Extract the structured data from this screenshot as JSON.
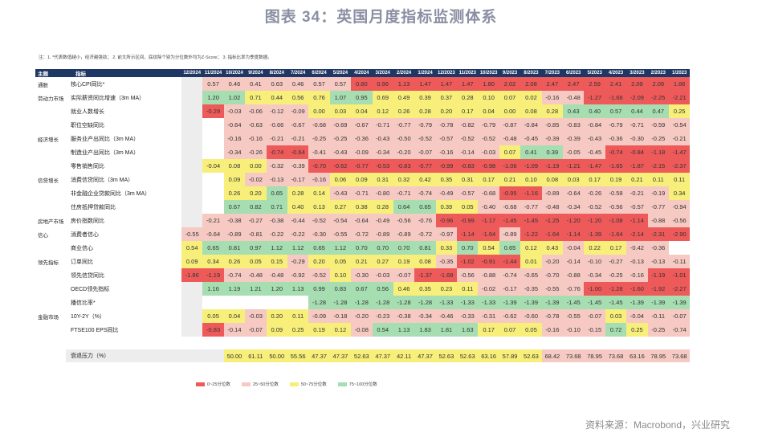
{
  "title": "图表 34：英国月度指标监测体系",
  "note": "注：1. *代表数值越小，经济越强劲； 2. 前文所示区间，底纹除个别为分位数外均为Z-Score； 3. 指标比率为季度数据。",
  "header": {
    "cat": "主题",
    "name": "指标"
  },
  "months": [
    "12/2024",
    "11/2024",
    "10/2024",
    "9/2024",
    "8/2024",
    "7/2024",
    "6/2024",
    "5/2024",
    "4/2024",
    "3/2024",
    "2/2024",
    "1/2024",
    "12/2023",
    "11/2023",
    "10/2023",
    "9/2023",
    "8/2023",
    "7/2023",
    "6/2023",
    "5/2023",
    "4/2023",
    "3/2023",
    "2/2023",
    "1/2023"
  ],
  "colors": {
    "red": "#ee5a5a",
    "pink": "#f6c9c3",
    "yellow": "#f7ef7a",
    "green": "#a6ddb1",
    "header": "#1f3764",
    "blank": "#ededed"
  },
  "rows": [
    {
      "cat": "通胀",
      "name": "核心CPI同比*",
      "values": [
        null,
        "0.57",
        "0.46",
        "0.41",
        "0.63",
        "0.46",
        "0.57",
        "0.57",
        "0.80",
        "0.96",
        "1.13",
        "1.47",
        "1.47",
        "1.47",
        "1.80",
        "2.02",
        "2.08",
        "2.47",
        "2.47",
        "2.59",
        "2.41",
        "2.09",
        "2.09",
        "1.86"
      ],
      "colors": [
        "w",
        "p",
        "p",
        "p",
        "p",
        "p",
        "p",
        "p",
        "r",
        "r",
        "r",
        "r",
        "r",
        "r",
        "r",
        "r",
        "r",
        "r",
        "r",
        "r",
        "r",
        "r",
        "r",
        "r"
      ]
    },
    {
      "cat": "劳动力市场",
      "name": "实际薪资同比增速（3m MA）",
      "values": [
        null,
        "1.20",
        "1.02",
        "0.71",
        "0.44",
        "0.56",
        "0.76",
        "1.07",
        "0.95",
        "0.69",
        "0.49",
        "0.39",
        "0.37",
        "0.28",
        "0.10",
        "0.07",
        "0.02",
        "-0.16",
        "-0.48",
        "-1.27",
        "-1.68",
        "-2.09",
        "-2.25",
        "-2.21"
      ],
      "colors": [
        "w",
        "g",
        "g",
        "y",
        "y",
        "y",
        "y",
        "g",
        "g",
        "y",
        "y",
        "y",
        "y",
        "y",
        "y",
        "y",
        "y",
        "p",
        "p",
        "r",
        "r",
        "r",
        "r",
        "r"
      ]
    },
    {
      "cat": "",
      "name": "就业人数增长",
      "values": [
        null,
        "-0.29",
        "-0.03",
        "-0.06",
        "-0.12",
        "-0.09",
        "0.00",
        "0.03",
        "0.04",
        "0.12",
        "0.26",
        "0.28",
        "0.20",
        "0.17",
        "0.04",
        "0.00",
        "0.08",
        "0.28",
        "0.43",
        "0.40",
        "0.57",
        "0.44",
        "0.47",
        "0.25"
      ],
      "colors": [
        "w",
        "r",
        "p",
        "p",
        "p",
        "p",
        "y",
        "y",
        "y",
        "y",
        "y",
        "y",
        "y",
        "y",
        "y",
        "y",
        "y",
        "y",
        "g",
        "g",
        "g",
        "g",
        "g",
        "y"
      ]
    },
    {
      "cat": "",
      "name": "职位空缺同比",
      "values": [
        null,
        null,
        "-0.64",
        "-0.63",
        "-0.66",
        "-0.67",
        "-0.68",
        "-0.69",
        "-0.67",
        "-0.71",
        "-0.77",
        "-0.79",
        "-0.78",
        "-0.82",
        "-0.79",
        "-0.87",
        "-0.84",
        "-0.85",
        "-0.83",
        "-0.84",
        "-0.79",
        "-0.71",
        "-0.59",
        "-0.54"
      ],
      "colors": [
        "w",
        "w",
        "p",
        "p",
        "p",
        "p",
        "p",
        "p",
        "p",
        "p",
        "p",
        "p",
        "p",
        "p",
        "p",
        "p",
        "p",
        "p",
        "p",
        "p",
        "p",
        "p",
        "p",
        "p"
      ]
    },
    {
      "cat": "经济增长",
      "name": "服务业产出同比（3m MA）",
      "values": [
        null,
        null,
        "-0.16",
        "-0.16",
        "-0.21",
        "-0.21",
        "-0.25",
        "-0.25",
        "-0.36",
        "-0.43",
        "-0.50",
        "-0.52",
        "-0.57",
        "-0.52",
        "-0.52",
        "-0.48",
        "-0.45",
        "-0.39",
        "-0.39",
        "-0.43",
        "-0.36",
        "-0.30",
        "-0.25",
        "-0.21"
      ],
      "colors": [
        "w",
        "w",
        "p",
        "p",
        "p",
        "p",
        "p",
        "p",
        "p",
        "p",
        "p",
        "p",
        "p",
        "p",
        "p",
        "p",
        "p",
        "p",
        "p",
        "p",
        "p",
        "p",
        "p",
        "p"
      ]
    },
    {
      "cat": "",
      "name": "制造业产出同比（3m MA）",
      "values": [
        null,
        null,
        "-0.34",
        "-0.26",
        "-0.74",
        "-0.64",
        "-0.41",
        "-0.43",
        "-0.09",
        "-0.34",
        "-0.20",
        "-0.07",
        "-0.16",
        "-0.14",
        "-0.03",
        "0.07",
        "0.41",
        "0.39",
        "-0.05",
        "-0.45",
        "-0.74",
        "-0.84",
        "-1.18",
        "-1.47"
      ],
      "colors": [
        "w",
        "w",
        "p",
        "p",
        "r",
        "r",
        "p",
        "p",
        "p",
        "p",
        "p",
        "p",
        "p",
        "p",
        "p",
        "y",
        "g",
        "g",
        "p",
        "p",
        "r",
        "r",
        "r",
        "r"
      ]
    },
    {
      "cat": "",
      "name": "零售销售同比",
      "values": [
        null,
        "-0.04",
        "0.08",
        "0.00",
        "-0.32",
        "-0.39",
        "-0.70",
        "-0.62",
        "-0.77",
        "-0.53",
        "-0.83",
        "-0.77",
        "-0.99",
        "-0.83",
        "-0.98",
        "-1.06",
        "-1.09",
        "-1.19",
        "-1.21",
        "-1.47",
        "-1.65",
        "-1.87",
        "-2.15",
        "-2.37"
      ],
      "colors": [
        "w",
        "y",
        "y",
        "y",
        "p",
        "p",
        "r",
        "r",
        "r",
        "r",
        "r",
        "r",
        "r",
        "r",
        "r",
        "r",
        "r",
        "r",
        "r",
        "r",
        "r",
        "r",
        "r",
        "r"
      ]
    },
    {
      "cat": "信贷增长",
      "name": "消费信贷同比（3m MA）",
      "values": [
        null,
        null,
        "0.09",
        "-0.02",
        "-0.13",
        "-0.17",
        "-0.16",
        "0.06",
        "0.09",
        "0.31",
        "0.32",
        "0.42",
        "0.35",
        "0.31",
        "0.17",
        "0.21",
        "0.10",
        "0.08",
        "0.03",
        "0.17",
        "0.19",
        "0.21",
        "0.11",
        "0.11"
      ],
      "colors": [
        "w",
        "w",
        "y",
        "p",
        "p",
        "p",
        "p",
        "y",
        "y",
        "y",
        "y",
        "y",
        "y",
        "y",
        "y",
        "y",
        "y",
        "y",
        "y",
        "y",
        "y",
        "y",
        "y",
        "y"
      ]
    },
    {
      "cat": "",
      "name": "非金融企业贷款同比（3m MA）",
      "values": [
        null,
        null,
        "0.26",
        "0.20",
        "0.65",
        "0.28",
        "0.14",
        "-0.43",
        "-0.71",
        "-0.80",
        "-0.71",
        "-0.74",
        "-0.49",
        "-0.57",
        "-0.68",
        "-0.95",
        "-1.16",
        "-0.89",
        "-0.64",
        "-0.26",
        "-0.58",
        "-0.21",
        "-0.19",
        "0.34"
      ],
      "colors": [
        "w",
        "w",
        "y",
        "y",
        "g",
        "y",
        "y",
        "p",
        "p",
        "p",
        "p",
        "p",
        "p",
        "p",
        "p",
        "r",
        "r",
        "p",
        "p",
        "p",
        "p",
        "p",
        "p",
        "y"
      ]
    },
    {
      "cat": "",
      "name": "住房抵押贷款同比",
      "values": [
        null,
        null,
        "0.67",
        "0.82",
        "0.71",
        "0.40",
        "0.13",
        "0.27",
        "0.38",
        "0.28",
        "0.64",
        "0.65",
        "0.39",
        "0.05",
        "-0.40",
        "-0.68",
        "-0.77",
        "-0.48",
        "-0.34",
        "-0.52",
        "-0.56",
        "-0.57",
        "-0.77",
        "-0.94"
      ],
      "colors": [
        "w",
        "w",
        "g",
        "g",
        "g",
        "y",
        "y",
        "y",
        "y",
        "y",
        "g",
        "g",
        "y",
        "y",
        "p",
        "p",
        "p",
        "p",
        "p",
        "p",
        "p",
        "p",
        "p",
        "p"
      ]
    },
    {
      "cat": "房地产市场",
      "name": "房价指数同比",
      "values": [
        null,
        "-0.21",
        "-0.38",
        "-0.27",
        "-0.38",
        "-0.44",
        "-0.52",
        "-0.54",
        "-0.64",
        "-0.49",
        "-0.56",
        "-0.76",
        "-0.96",
        "-0.99",
        "-1.17",
        "-1.45",
        "-1.45",
        "-1.25",
        "-1.20",
        "-1.20",
        "-1.08",
        "-1.14",
        "-0.88",
        "-0.56"
      ],
      "colors": [
        "w",
        "p",
        "p",
        "p",
        "p",
        "p",
        "p",
        "p",
        "p",
        "p",
        "p",
        "p",
        "r",
        "r",
        "r",
        "r",
        "r",
        "r",
        "r",
        "r",
        "r",
        "r",
        "p",
        "p"
      ]
    },
    {
      "cat": "信心",
      "name": "消费者信心",
      "values": [
        "-0.55",
        "-0.64",
        "-0.89",
        "-0.81",
        "-0.22",
        "-0.22",
        "-0.30",
        "-0.55",
        "-0.72",
        "-0.89",
        "-0.89",
        "-0.72",
        "-0.97",
        "-1.14",
        "-1.64",
        "-0.89",
        "-1.22",
        "-1.64",
        "-1.14",
        "-1.39",
        "-1.64",
        "-2.14",
        "-2.31",
        "-2.90"
      ],
      "colors": [
        "p",
        "p",
        "p",
        "p",
        "p",
        "p",
        "p",
        "p",
        "p",
        "p",
        "p",
        "p",
        "p",
        "r",
        "r",
        "p",
        "r",
        "r",
        "r",
        "r",
        "r",
        "r",
        "r",
        "r"
      ]
    },
    {
      "cat": "",
      "name": "商业信心",
      "values": [
        "0.54",
        "0.65",
        "0.81",
        "0.97",
        "1.12",
        "1.12",
        "0.65",
        "1.12",
        "0.70",
        "0.70",
        "0.70",
        "0.81",
        "0.33",
        "0.70",
        "0.54",
        "0.65",
        "0.12",
        "0.43",
        "-0.04",
        "0.22",
        "0.17",
        "-0.42",
        "-0.36",
        null
      ],
      "colors": [
        "y",
        "g",
        "g",
        "g",
        "g",
        "g",
        "g",
        "g",
        "g",
        "g",
        "g",
        "g",
        "y",
        "g",
        "y",
        "g",
        "y",
        "y",
        "p",
        "y",
        "y",
        "p",
        "p",
        "w"
      ]
    },
    {
      "cat": "领先指标",
      "name": "订单同比",
      "values": [
        "0.09",
        "0.34",
        "0.26",
        "0.05",
        "0.15",
        "-0.29",
        "0.20",
        "0.05",
        "0.21",
        "0.27",
        "0.19",
        "0.08",
        "-0.35",
        "-1.02",
        "-0.91",
        "-1.44",
        "0.01",
        "-0.20",
        "-0.14",
        "-0.10",
        "-0.27",
        "-0.13",
        "-0.13",
        "-0.11"
      ],
      "colors": [
        "y",
        "y",
        "y",
        "y",
        "y",
        "p",
        "y",
        "y",
        "y",
        "y",
        "y",
        "y",
        "p",
        "r",
        "r",
        "r",
        "y",
        "p",
        "p",
        "p",
        "p",
        "p",
        "p",
        "p"
      ]
    },
    {
      "cat": "",
      "name": "领先信贷同比",
      "values": [
        "-1.86",
        "-1.19",
        "-0.74",
        "-0.48",
        "-0.48",
        "-0.92",
        "-0.52",
        "0.10",
        "-0.30",
        "-0.03",
        "-0.07",
        "-1.37",
        "-1.68",
        "-0.56",
        "-0.88",
        "-0.74",
        "-0.65",
        "-0.70",
        "-0.88",
        "-0.34",
        "-0.25",
        "-0.16",
        "-1.19",
        "-1.01"
      ],
      "colors": [
        "r",
        "r",
        "p",
        "p",
        "p",
        "p",
        "p",
        "y",
        "p",
        "p",
        "p",
        "r",
        "r",
        "p",
        "p",
        "p",
        "p",
        "p",
        "p",
        "p",
        "p",
        "p",
        "r",
        "r"
      ]
    },
    {
      "cat": "",
      "name": "OECD领先指标",
      "values": [
        null,
        "1.16",
        "1.19",
        "1.21",
        "1.20",
        "1.13",
        "0.99",
        "0.83",
        "0.67",
        "0.56",
        "0.46",
        "0.35",
        "0.23",
        "0.11",
        "-0.02",
        "-0.17",
        "-0.35",
        "-0.55",
        "-0.76",
        "-1.00",
        "-1.28",
        "-1.60",
        "-1.92",
        "-2.27"
      ],
      "colors": [
        "w",
        "g",
        "g",
        "g",
        "g",
        "g",
        "g",
        "g",
        "g",
        "g",
        "y",
        "y",
        "y",
        "y",
        "p",
        "p",
        "p",
        "p",
        "p",
        "r",
        "r",
        "r",
        "r",
        "r"
      ]
    },
    {
      "cat": "",
      "name": "播信比率*",
      "values": [
        null,
        null,
        null,
        null,
        null,
        null,
        "-1.28",
        "-1.28",
        "-1.28",
        "-1.28",
        "-1.28",
        "-1.28",
        "-1.33",
        "-1.33",
        "-1.33",
        "-1.39",
        "-1.39",
        "-1.39",
        "-1.45",
        "-1.45",
        "-1.45",
        "-1.39",
        "-1.39",
        "-1.39"
      ],
      "colors": [
        "w",
        "w",
        "w",
        "w",
        "w",
        "w",
        "g",
        "g",
        "g",
        "g",
        "g",
        "g",
        "g",
        "g",
        "g",
        "g",
        "g",
        "g",
        "g",
        "g",
        "g",
        "g",
        "g",
        "g"
      ]
    },
    {
      "cat": "金融市场",
      "name": "10Y-2Y（%）",
      "values": [
        null,
        "0.05",
        "0.04",
        "-0.03",
        "0.20",
        "0.11",
        "-0.09",
        "-0.18",
        "-0.20",
        "-0.23",
        "-0.38",
        "-0.34",
        "-0.46",
        "-0.33",
        "-0.31",
        "-0.62",
        "-0.60",
        "-0.78",
        "-0.55",
        "-0.07",
        "0.03",
        "-0.04",
        "-0.11",
        "-0.07"
      ],
      "colors": [
        "w",
        "y",
        "y",
        "p",
        "y",
        "y",
        "p",
        "p",
        "p",
        "p",
        "p",
        "p",
        "p",
        "p",
        "p",
        "p",
        "p",
        "p",
        "p",
        "p",
        "y",
        "p",
        "p",
        "p"
      ]
    },
    {
      "cat": "",
      "name": "FTSE100 EPS同比",
      "values": [
        null,
        "-0.83",
        "-0.14",
        "-0.07",
        "0.09",
        "0.25",
        "0.19",
        "0.12",
        "-0.08",
        "0.54",
        "1.13",
        "1.83",
        "1.81",
        "1.63",
        "0.17",
        "0.07",
        "0.05",
        "-0.16",
        "-0.10",
        "-0.15",
        "0.72",
        "0.25",
        "-0.25",
        "-0.74"
      ],
      "colors": [
        "w",
        "r",
        "p",
        "p",
        "y",
        "y",
        "y",
        "y",
        "p",
        "g",
        "g",
        "g",
        "g",
        "g",
        "y",
        "y",
        "y",
        "p",
        "p",
        "p",
        "g",
        "y",
        "p",
        "p"
      ]
    }
  ],
  "pressure": {
    "name": "衰退压力（%）",
    "values": [
      null,
      null,
      "50.00",
      "61.11",
      "50.00",
      "55.56",
      "47.37",
      "47.37",
      "52.63",
      "47.37",
      "42.11",
      "47.37",
      "52.63",
      "52.63",
      "63.16",
      "57.89",
      "52.63",
      "68.42",
      "73.68",
      "78.95",
      "73.68",
      "63.16",
      "78.95",
      "73.68"
    ],
    "colors": [
      "w",
      "w",
      "y",
      "y",
      "y",
      "y",
      "y",
      "y",
      "y",
      "y",
      "y",
      "y",
      "y",
      "y",
      "y",
      "y",
      "y",
      "p",
      "p",
      "p",
      "p",
      "p",
      "p",
      "p"
    ]
  },
  "legend": [
    {
      "label": "0~25分位数",
      "color": "#ee5a5a"
    },
    {
      "label": "25~50分位数",
      "color": "#f6c9c3"
    },
    {
      "label": "50~75分位数",
      "color": "#f7ef7a"
    },
    {
      "label": "75~100分位数",
      "color": "#a6ddb1"
    }
  ],
  "source": "资料来源：Macrobond，兴业研究",
  "chart_data": {
    "type": "table",
    "title": "图表 34：英国月度指标监测体系",
    "columns": [
      "12/2024",
      "11/2024",
      "10/2024",
      "9/2024",
      "8/2024",
      "7/2024",
      "6/2024",
      "5/2024",
      "4/2024",
      "3/2024",
      "2/2024",
      "1/2024",
      "12/2023",
      "11/2023",
      "10/2023",
      "9/2023",
      "8/2023",
      "7/2023",
      "6/2023",
      "5/2023",
      "4/2023",
      "3/2023",
      "2/2023",
      "1/2023"
    ],
    "recession_pressure": [
      null,
      null,
      50.0,
      61.11,
      50.0,
      55.56,
      47.37,
      47.37,
      52.63,
      47.37,
      42.11,
      47.37,
      52.63,
      52.63,
      63.16,
      57.89,
      52.63,
      68.42,
      73.68,
      78.95,
      73.68,
      63.16,
      78.95,
      73.68
    ]
  }
}
